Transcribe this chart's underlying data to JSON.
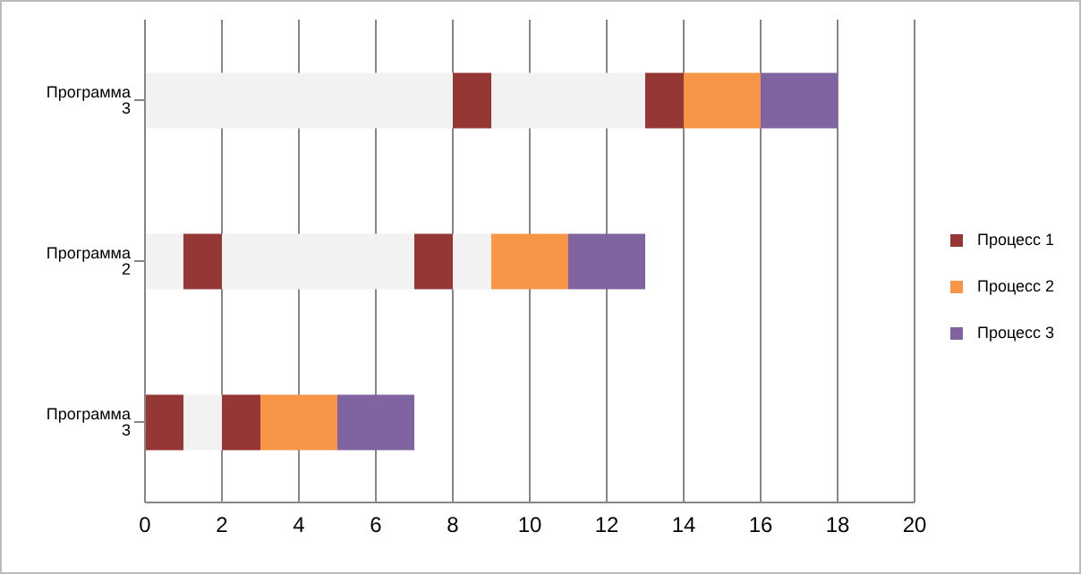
{
  "chart_data": {
    "type": "bar",
    "orientation": "horizontal",
    "stacked": true,
    "categories": [
      "Программа 3",
      "Программа 2",
      "Программа 3"
    ],
    "series": [
      {
        "color": "#f2f2f2",
        "values": [
          8,
          1,
          0
        ]
      },
      {
        "name": "Процесс 1",
        "color": "#953735",
        "values": [
          1,
          1,
          1
        ]
      },
      {
        "color": "#f2f2f2",
        "values": [
          4,
          5,
          1
        ]
      },
      {
        "color": "#953735",
        "values": [
          1,
          1,
          1
        ]
      },
      {
        "color": "#f2f2f2",
        "values": [
          0,
          1,
          0
        ]
      },
      {
        "name": "Процесс 2",
        "color": "#f79646",
        "values": [
          2,
          2,
          2
        ]
      },
      {
        "name": "Процесс 3",
        "color": "#8064a2",
        "values": [
          2,
          2,
          2
        ]
      }
    ],
    "xlim": [
      0,
      20
    ],
    "xticks": [
      0,
      2,
      4,
      6,
      8,
      10,
      12,
      14,
      16,
      18,
      20
    ],
    "grid": "x",
    "legend": "right"
  }
}
